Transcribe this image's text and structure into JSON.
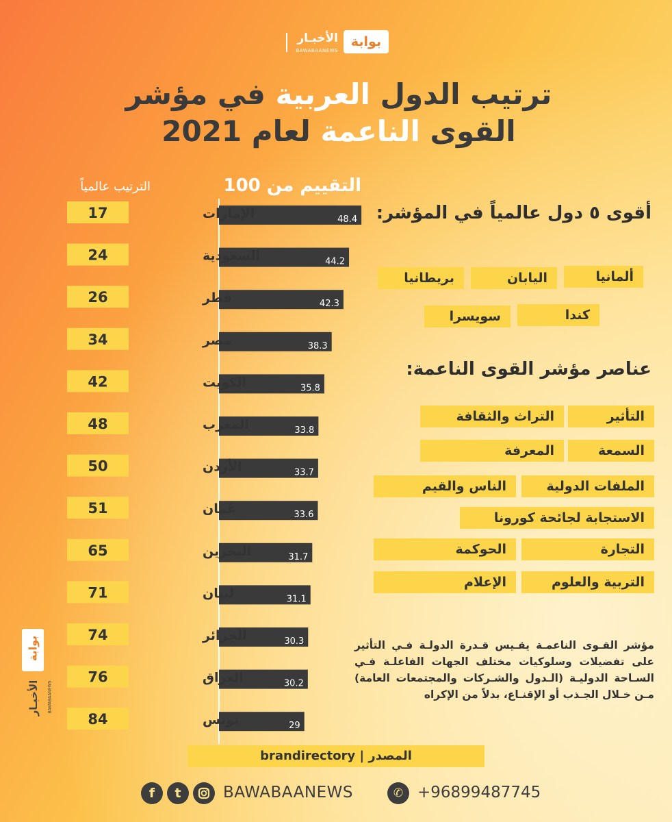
{
  "brand": {
    "name": "بوابة",
    "word": "الأخبـار",
    "latin": "BAWABAANEWS"
  },
  "title": {
    "line1_dark": "ترتيب الدول",
    "line1_hl": "العربية",
    "line1_end": "في مؤشر",
    "line2_dark1": "القوى",
    "line2_hl": "الناعمة",
    "line2_dark2": "لعام 2021"
  },
  "chart_data": {
    "type": "bar",
    "orientation": "horizontal",
    "score_header": "التقييم من 100",
    "rank_header": "الترتيب عالمياً",
    "categories": [
      "الإمارات",
      "السعودية",
      "قطر",
      "مصر",
      "الكويت",
      "المغرب",
      "الأردن",
      "عُمان",
      "البحرين",
      "لبنان",
      "الجزائر",
      "العراق",
      "تونس"
    ],
    "values": [
      48.4,
      44.2,
      42.3,
      38.3,
      35.8,
      33.8,
      33.7,
      33.6,
      31.7,
      31.1,
      30.3,
      30.2,
      29
    ],
    "value_labels": [
      "48.4",
      "44.2",
      "42.3",
      "38.3",
      "35.8",
      "33.8",
      "33.7",
      "33.6",
      "31.7",
      "31.1",
      "30.3",
      "30.2",
      "29"
    ],
    "ranks": [
      "17",
      "24",
      "26",
      "34",
      "42",
      "48",
      "50",
      "51",
      "65",
      "71",
      "74",
      "76",
      "84"
    ],
    "bar_color": "#3a3a3a",
    "rank_color": "#fdd54b"
  },
  "top5": {
    "heading": "أقوى ٥ دول عالمياً في المؤشر:",
    "countries": [
      "ألمانيا",
      "اليابان",
      "بريطانيا",
      "كندا",
      "سويسرا"
    ]
  },
  "elements": {
    "heading": "عناصر مؤشر القوى الناعمة:",
    "items": [
      "التأثير",
      "التراث والثقافة",
      "السمعة",
      "المعرفة",
      "الملفات الدولية",
      "الناس والقيم",
      "الاستجابة لجائحة كورونا",
      "التجارة",
      "الحوكمة",
      "التربية والعلوم",
      "الإعلام"
    ]
  },
  "description": "مؤشر القـوى الناعمـة يقـيس قـدرة الدولـة فـي التأثير على تفضيلات وسلوكيات مختلف الجهات الفاعلـة فـي السـاحة الدوليـة (الـدول والشـركات والمجتمعات العامة) مـن خـلال الجـذب أو الإقنـاع، بدلاً من الإكراه",
  "source": {
    "label": "المصدر",
    "value": "brandirectory"
  },
  "footer": {
    "handle": "BAWABAANEWS",
    "phone": "+96899487745",
    "icons": [
      "facebook-icon",
      "twitter-icon",
      "instagram-icon",
      "whatsapp-icon"
    ]
  }
}
